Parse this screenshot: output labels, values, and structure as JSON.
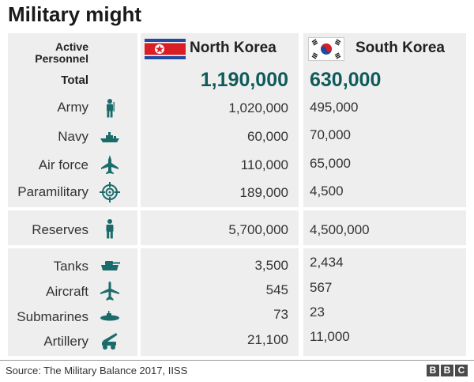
{
  "title": "Military might",
  "colors": {
    "accent": "#105b5a",
    "icon": "#1c6b6b",
    "panel": "#eeeeee"
  },
  "header": {
    "active_label_1": "Active",
    "active_label_2": "Personnel",
    "north_korea": "North Korea",
    "south_korea": "South Korea"
  },
  "chart_data": {
    "type": "table",
    "columns": [
      "North Korea",
      "South Korea"
    ],
    "groups": [
      {
        "rows": [
          {
            "label": "Total",
            "icon": "",
            "north": "1,190,000",
            "south": "630,000",
            "highlight": true
          },
          {
            "label": "Army",
            "icon": "soldier-icon",
            "north": "1,020,000",
            "south": "495,000"
          },
          {
            "label": "Navy",
            "icon": "ship-icon",
            "north": "60,000",
            "south": "70,000"
          },
          {
            "label": "Air force",
            "icon": "jet-icon",
            "north": "110,000",
            "south": "65,000"
          },
          {
            "label": "Paramilitary",
            "icon": "crosshair-icon",
            "north": "189,000",
            "south": "4,500"
          }
        ]
      },
      {
        "rows": [
          {
            "label": "Reserves",
            "icon": "person-icon",
            "north": "5,700,000",
            "south": "4,500,000"
          }
        ]
      },
      {
        "rows": [
          {
            "label": "Tanks",
            "icon": "tank-icon",
            "north": "3,500",
            "south": "2,434"
          },
          {
            "label": "Aircraft",
            "icon": "airplane-icon",
            "north": "545",
            "south": "567"
          },
          {
            "label": "Submarines",
            "icon": "submarine-icon",
            "north": "73",
            "south": "23"
          },
          {
            "label": "Artillery",
            "icon": "artillery-icon",
            "north": "21,100",
            "south": "11,000"
          }
        ]
      }
    ]
  },
  "footer": {
    "source": "Source: The Military Balance 2017, IISS",
    "logo": [
      "B",
      "B",
      "C"
    ]
  }
}
